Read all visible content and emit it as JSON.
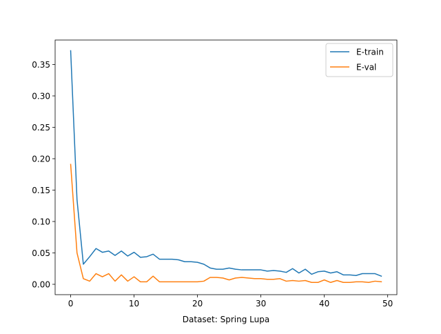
{
  "chart_data": {
    "type": "line",
    "title": "",
    "xlabel": "Dataset: Spring Lupa",
    "ylabel": "",
    "xlim": [
      -2.45,
      51.45
    ],
    "ylim": [
      -0.0165,
      0.389
    ],
    "xticks": [
      0,
      10,
      20,
      30,
      40,
      50
    ],
    "xtick_labels": [
      "0",
      "10",
      "20",
      "30",
      "40",
      "50"
    ],
    "yticks": [
      0.0,
      0.05,
      0.1,
      0.15,
      0.2,
      0.25,
      0.3,
      0.35
    ],
    "ytick_labels": [
      "0.00",
      "0.05",
      "0.10",
      "0.15",
      "0.20",
      "0.25",
      "0.30",
      "0.35"
    ],
    "grid": false,
    "legend_position": "upper right",
    "x": [
      0,
      1,
      2,
      3,
      4,
      5,
      6,
      7,
      8,
      9,
      10,
      11,
      12,
      13,
      14,
      15,
      16,
      17,
      18,
      19,
      20,
      21,
      22,
      23,
      24,
      25,
      26,
      27,
      28,
      29,
      30,
      31,
      32,
      33,
      34,
      35,
      36,
      37,
      38,
      39,
      40,
      41,
      42,
      43,
      44,
      45,
      46,
      47,
      48,
      49
    ],
    "series": [
      {
        "name": "E-train",
        "color": "#1f77b4",
        "values": [
          0.372,
          0.135,
          0.032,
          0.044,
          0.057,
          0.051,
          0.053,
          0.046,
          0.053,
          0.045,
          0.051,
          0.043,
          0.044,
          0.048,
          0.04,
          0.04,
          0.04,
          0.039,
          0.036,
          0.036,
          0.035,
          0.032,
          0.026,
          0.024,
          0.024,
          0.026,
          0.024,
          0.023,
          0.023,
          0.023,
          0.023,
          0.021,
          0.022,
          0.021,
          0.019,
          0.025,
          0.018,
          0.024,
          0.016,
          0.02,
          0.021,
          0.018,
          0.02,
          0.015,
          0.015,
          0.014,
          0.017,
          0.017,
          0.017,
          0.013
        ]
      },
      {
        "name": "E-val",
        "color": "#ff7f0e",
        "values": [
          0.191,
          0.05,
          0.009,
          0.005,
          0.017,
          0.012,
          0.017,
          0.005,
          0.015,
          0.005,
          0.012,
          0.004,
          0.004,
          0.013,
          0.004,
          0.004,
          0.004,
          0.004,
          0.004,
          0.004,
          0.004,
          0.005,
          0.011,
          0.011,
          0.01,
          0.007,
          0.01,
          0.011,
          0.01,
          0.009,
          0.009,
          0.008,
          0.008,
          0.009,
          0.005,
          0.006,
          0.005,
          0.006,
          0.003,
          0.003,
          0.007,
          0.003,
          0.006,
          0.003,
          0.003,
          0.004,
          0.004,
          0.003,
          0.005,
          0.004
        ]
      }
    ]
  }
}
